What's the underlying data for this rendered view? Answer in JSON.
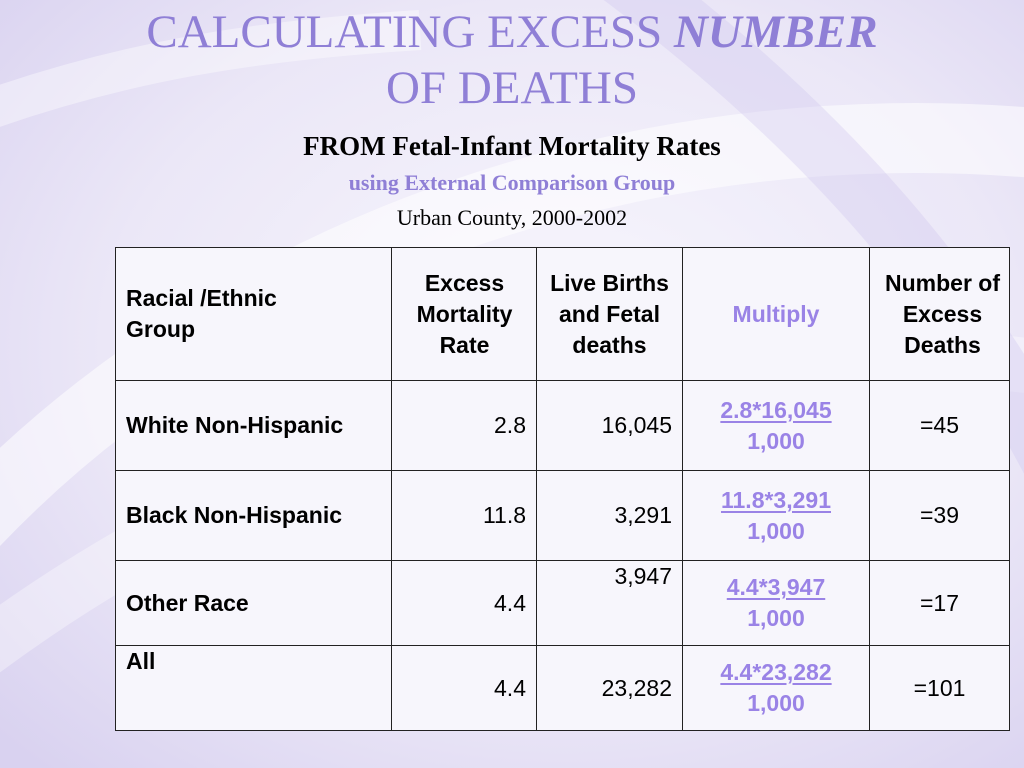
{
  "slide": {
    "title_line1": "CALCULATING EXCESS",
    "title_emphasis": "NUMBER",
    "title_line2": "OF DEATHS",
    "subtitle": "FROM Fetal-Infant Mortality Rates",
    "subtitle2": "using External Comparison Group",
    "subtitle3": "Urban County, 2000-2002",
    "accent_color": "#8f7fd6"
  },
  "table": {
    "headers": {
      "group": "Racial /Ethnic Group",
      "rate": "Excess Mortality Rate",
      "births": "Live Births and Fetal deaths",
      "multiply": "Multiply",
      "number": "Number of Excess Deaths"
    },
    "rows": [
      {
        "group": "White Non-Hispanic",
        "rate": "2.8",
        "births": "16,045",
        "mult_numerator": "2.8*16,045",
        "mult_denominator": "1,000",
        "excess": "=45"
      },
      {
        "group": "Black Non-Hispanic",
        "rate": "11.8",
        "births": "3,291",
        "mult_numerator": "11.8*3,291",
        "mult_denominator": "1,000",
        "excess": "=39"
      },
      {
        "group": "Other Race",
        "rate": "4.4",
        "births": "3,947",
        "mult_numerator": "4.4*3,947",
        "mult_denominator": "1,000",
        "excess": "=17"
      },
      {
        "group": "All",
        "rate": "4.4",
        "births": "23,282",
        "mult_numerator": "4.4*23,282",
        "mult_denominator": "1,000",
        "excess": "=101"
      }
    ]
  }
}
